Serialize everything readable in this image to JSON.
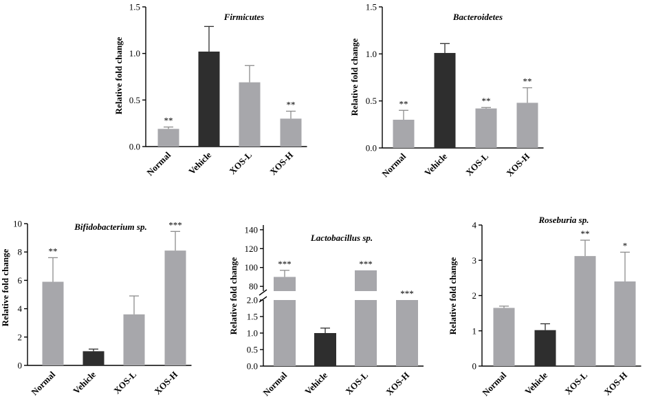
{
  "colors": {
    "gray": "#a7a7ab",
    "dark": "#2e2e2e",
    "axis": "#000000",
    "err": "#8c8c8c"
  },
  "chart_data": [
    {
      "type": "bar",
      "title": "Firmicutes",
      "ylabel": "Relative fold change",
      "categories": [
        "Normal",
        "Vehicle",
        "XOS-L",
        "XOS-H"
      ],
      "values": [
        0.19,
        1.02,
        0.69,
        0.3
      ],
      "errors": [
        0.02,
        0.27,
        0.18,
        0.08
      ],
      "significance": [
        "**",
        "",
        "",
        "**"
      ],
      "bar_colors": [
        "gray",
        "dark",
        "gray",
        "gray"
      ],
      "ylim": [
        0,
        1.5
      ],
      "ticks": [
        "0.0",
        "0.5",
        "1.0",
        "1.5"
      ]
    },
    {
      "type": "bar",
      "title": "Bacteroidetes",
      "ylabel": "Relative fold change",
      "categories": [
        "Normal",
        "Vehicle",
        "XOS-L",
        "XOS-H"
      ],
      "values": [
        0.3,
        1.01,
        0.42,
        0.48
      ],
      "errors": [
        0.1,
        0.1,
        0.01,
        0.16
      ],
      "significance": [
        "**",
        "",
        "**",
        "**"
      ],
      "bar_colors": [
        "gray",
        "dark",
        "gray",
        "gray"
      ],
      "ylim": [
        0,
        1.5
      ],
      "ticks": [
        "0.0",
        "0.5",
        "1.0",
        "1.5"
      ]
    },
    {
      "type": "bar",
      "title": "Bifidobacterium sp.",
      "ylabel": "Relative fold change",
      "categories": [
        "Normal",
        "Vehicle",
        "XOS-L",
        "XOS-H"
      ],
      "values": [
        5.9,
        1.0,
        3.6,
        8.1
      ],
      "errors": [
        1.7,
        0.15,
        1.3,
        1.35
      ],
      "significance": [
        "**",
        "",
        "",
        "***"
      ],
      "bar_colors": [
        "gray",
        "dark",
        "gray",
        "gray"
      ],
      "ylim": [
        0,
        10
      ],
      "ticks": [
        "0",
        "2",
        "4",
        "6",
        "8",
        "10"
      ]
    },
    {
      "type": "bar",
      "title": "Lactobacillus sp.",
      "ylabel": "Relative fold change",
      "categories": [
        "Normal",
        "Vehicle",
        "XOS-L",
        "XOS-H"
      ],
      "values": [
        90,
        1.0,
        97,
        2.0
      ],
      "errors": [
        7,
        0.15,
        0,
        0
      ],
      "significance": [
        "***",
        "",
        "***",
        "***"
      ],
      "bar_colors": [
        "gray",
        "dark",
        "gray",
        "gray"
      ],
      "broken_axis": {
        "lower": [
          0,
          2
        ],
        "upper": [
          75,
          145
        ]
      },
      "ticks_lower": [
        "0.0",
        "0.5",
        "1.0",
        "1.5",
        "2.0"
      ],
      "ticks_upper": [
        "80",
        "100",
        "120",
        "140"
      ]
    },
    {
      "type": "bar",
      "title": "Roseburia sp.",
      "ylabel": "Relative fold change",
      "categories": [
        "Normal",
        "Vehicle",
        "XOS-L",
        "XOS-H"
      ],
      "values": [
        1.65,
        1.02,
        3.12,
        2.4
      ],
      "errors": [
        0.05,
        0.18,
        0.45,
        0.83
      ],
      "significance": [
        "",
        "",
        "**",
        "*"
      ],
      "bar_colors": [
        "gray",
        "dark",
        "gray",
        "gray"
      ],
      "ylim": [
        0,
        4
      ],
      "ticks": [
        "0",
        "1",
        "2",
        "3",
        "4"
      ]
    }
  ]
}
